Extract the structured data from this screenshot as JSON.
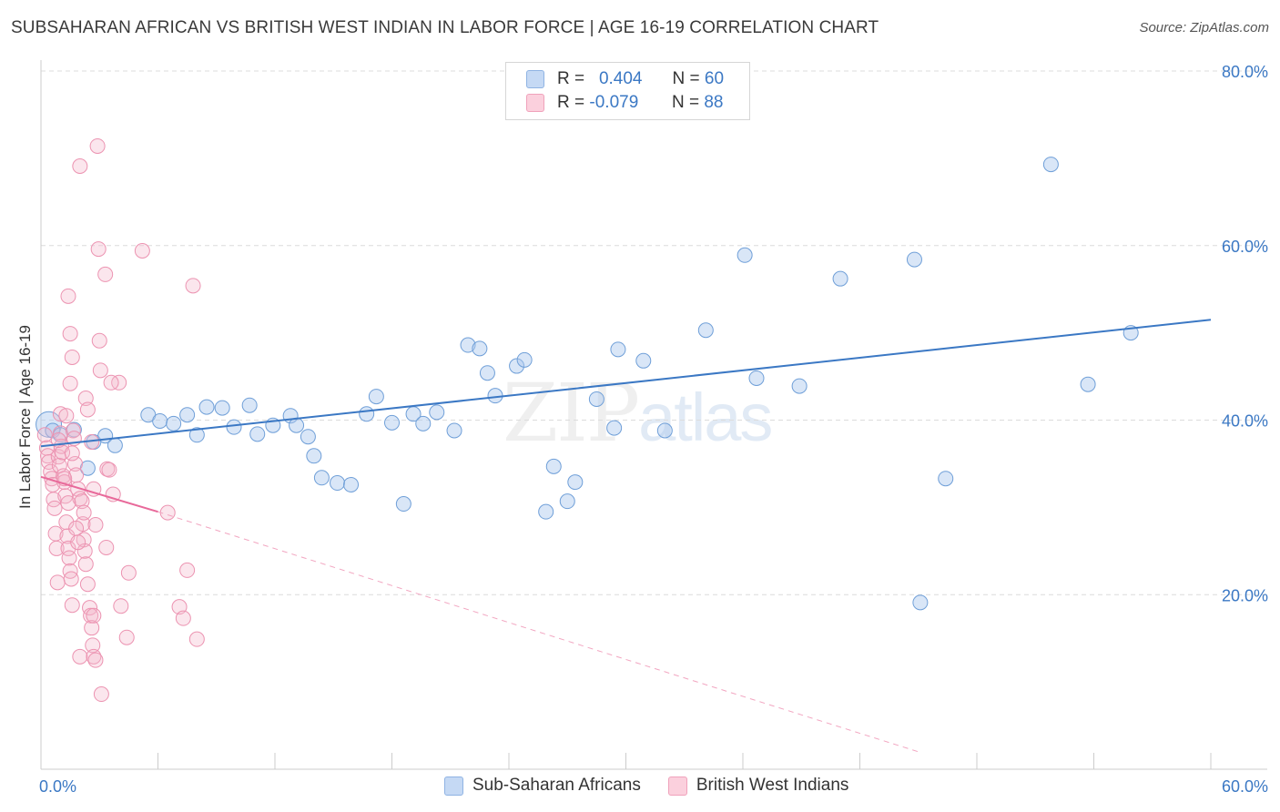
{
  "title": "SUBSAHARAN AFRICAN VS BRITISH WEST INDIAN IN LABOR FORCE | AGE 16-19 CORRELATION CHART",
  "source": "Source: ZipAtlas.com",
  "watermark": {
    "zip": "ZIP",
    "atlas": "atlas"
  },
  "colors": {
    "blue": "#3b78c4",
    "blue_fill": "#aac8ee",
    "pink": "#e8699a",
    "pink_fill": "#f4b8cb",
    "grid": "#dddddd"
  },
  "legend": {
    "rows": [
      {
        "r_label": "R =",
        "r_value": "0.404",
        "n_label": "N =",
        "n_value": "60"
      },
      {
        "r_label": "R =",
        "r_value": "-0.079",
        "n_label": "N =",
        "n_value": "88"
      }
    ]
  },
  "bottom_legend": [
    "Sub-Saharan Africans",
    "British West Indians"
  ],
  "chart_data": {
    "type": "scatter",
    "xlabel": "",
    "ylabel": "In Labor Force | Age 16-19",
    "xlim": [
      0,
      60
    ],
    "ylim": [
      0,
      80
    ],
    "x_tick_labels": [
      "0.0%",
      "60.0%"
    ],
    "y_tick_labels": [
      "20.0%",
      "40.0%",
      "60.0%",
      "80.0%"
    ],
    "y_ticks": [
      20,
      40,
      60,
      80
    ],
    "series": [
      {
        "name": "Sub-Saharan Africans",
        "color": "blue",
        "trend": {
          "x": [
            0,
            60
          ],
          "y": [
            37.0,
            51.5
          ],
          "style": "solid"
        },
        "points": [
          [
            0.4,
            39.5
          ],
          [
            0.6,
            38.8
          ],
          [
            1.0,
            38.3
          ],
          [
            1.7,
            38.9
          ],
          [
            2.7,
            37.5
          ],
          [
            2.4,
            34.5
          ],
          [
            3.3,
            38.2
          ],
          [
            3.8,
            37.1
          ],
          [
            5.5,
            40.6
          ],
          [
            6.1,
            39.9
          ],
          [
            6.8,
            39.6
          ],
          [
            7.5,
            40.6
          ],
          [
            8.0,
            38.3
          ],
          [
            8.5,
            41.5
          ],
          [
            9.3,
            41.4
          ],
          [
            9.9,
            39.2
          ],
          [
            10.7,
            41.7
          ],
          [
            11.1,
            38.4
          ],
          [
            11.9,
            39.4
          ],
          [
            12.8,
            40.5
          ],
          [
            13.1,
            39.4
          ],
          [
            13.7,
            38.1
          ],
          [
            14.0,
            35.9
          ],
          [
            14.4,
            33.4
          ],
          [
            15.2,
            32.8
          ],
          [
            15.9,
            32.6
          ],
          [
            16.7,
            40.7
          ],
          [
            17.2,
            42.7
          ],
          [
            18.0,
            39.7
          ],
          [
            18.6,
            30.4
          ],
          [
            19.1,
            40.7
          ],
          [
            19.6,
            39.6
          ],
          [
            20.3,
            40.9
          ],
          [
            21.2,
            38.8
          ],
          [
            21.9,
            48.6
          ],
          [
            22.5,
            48.2
          ],
          [
            22.9,
            45.4
          ],
          [
            23.3,
            42.8
          ],
          [
            24.4,
            46.2
          ],
          [
            24.8,
            46.9
          ],
          [
            25.9,
            29.5
          ],
          [
            26.3,
            34.7
          ],
          [
            27.0,
            30.7
          ],
          [
            27.4,
            32.9
          ],
          [
            28.5,
            42.4
          ],
          [
            29.4,
            39.1
          ],
          [
            29.6,
            48.1
          ],
          [
            30.9,
            46.8
          ],
          [
            32.0,
            38.8
          ],
          [
            34.1,
            50.3
          ],
          [
            36.1,
            58.9
          ],
          [
            36.7,
            44.8
          ],
          [
            38.9,
            43.9
          ],
          [
            41.0,
            56.2
          ],
          [
            44.8,
            58.4
          ],
          [
            45.1,
            19.1
          ],
          [
            46.4,
            33.3
          ],
          [
            51.8,
            69.3
          ],
          [
            53.7,
            44.1
          ],
          [
            55.9,
            50.0
          ]
        ]
      },
      {
        "name": "British West Indians",
        "color": "pink",
        "trend": {
          "x": [
            0,
            6.0
          ],
          "y": [
            33.5,
            29.5
          ],
          "style": "solid"
        },
        "trend_extension": {
          "x": [
            6.0,
            45.0
          ],
          "y": [
            29.5,
            2.0
          ],
          "style": "dashed"
        },
        "points": [
          [
            0.2,
            38.3
          ],
          [
            0.3,
            36.8
          ],
          [
            0.35,
            35.9
          ],
          [
            0.4,
            35.2
          ],
          [
            0.5,
            34.1
          ],
          [
            0.55,
            33.3
          ],
          [
            0.6,
            32.6
          ],
          [
            0.65,
            30.9
          ],
          [
            0.7,
            29.9
          ],
          [
            0.75,
            27.0
          ],
          [
            0.8,
            25.3
          ],
          [
            0.85,
            21.4
          ],
          [
            0.9,
            35.8
          ],
          [
            0.95,
            34.8
          ],
          [
            1.0,
            38.5
          ],
          [
            1.05,
            37.0
          ],
          [
            1.1,
            36.3
          ],
          [
            1.15,
            33.6
          ],
          [
            1.2,
            32.9
          ],
          [
            1.25,
            31.3
          ],
          [
            1.3,
            28.3
          ],
          [
            1.35,
            26.7
          ],
          [
            1.4,
            25.3
          ],
          [
            1.45,
            24.2
          ],
          [
            1.5,
            22.7
          ],
          [
            1.55,
            21.8
          ],
          [
            1.6,
            18.8
          ],
          [
            1.65,
            38.8
          ],
          [
            1.7,
            37.9
          ],
          [
            1.75,
            35.0
          ],
          [
            1.8,
            33.7
          ],
          [
            1.9,
            32.1
          ],
          [
            2.0,
            31.0
          ],
          [
            2.1,
            30.7
          ],
          [
            2.15,
            28.1
          ],
          [
            2.2,
            26.3
          ],
          [
            2.25,
            25.0
          ],
          [
            2.3,
            23.5
          ],
          [
            2.4,
            21.2
          ],
          [
            2.5,
            18.5
          ],
          [
            2.55,
            17.6
          ],
          [
            2.6,
            16.2
          ],
          [
            2.65,
            14.2
          ],
          [
            2.7,
            12.9
          ],
          [
            2.8,
            12.5
          ],
          [
            1.4,
            54.2
          ],
          [
            1.5,
            44.2
          ],
          [
            1.6,
            36.2
          ],
          [
            1.0,
            40.7
          ],
          [
            1.2,
            33.3
          ],
          [
            1.4,
            30.5
          ],
          [
            1.8,
            27.6
          ],
          [
            1.9,
            26.0
          ],
          [
            2.0,
            69.1
          ],
          [
            2.3,
            42.5
          ],
          [
            2.4,
            41.2
          ],
          [
            2.6,
            37.5
          ],
          [
            2.7,
            32.1
          ],
          [
            2.8,
            28.0
          ],
          [
            2.9,
            71.4
          ],
          [
            2.95,
            59.6
          ],
          [
            3.0,
            49.1
          ],
          [
            3.05,
            45.7
          ],
          [
            3.1,
            8.6
          ],
          [
            3.3,
            56.7
          ],
          [
            3.35,
            25.4
          ],
          [
            3.4,
            34.4
          ],
          [
            3.5,
            34.3
          ],
          [
            3.7,
            31.5
          ],
          [
            4.0,
            44.3
          ],
          [
            4.1,
            18.7
          ],
          [
            4.4,
            15.1
          ],
          [
            4.5,
            22.5
          ],
          [
            5.2,
            59.4
          ],
          [
            6.5,
            29.4
          ],
          [
            7.1,
            18.6
          ],
          [
            7.3,
            17.3
          ],
          [
            7.5,
            22.8
          ],
          [
            7.8,
            55.4
          ],
          [
            8.0,
            14.9
          ],
          [
            1.5,
            49.9
          ],
          [
            1.6,
            47.2
          ],
          [
            2.0,
            12.9
          ],
          [
            2.2,
            29.4
          ],
          [
            1.3,
            40.5
          ],
          [
            0.9,
            37.7
          ],
          [
            3.6,
            44.3
          ],
          [
            2.7,
            17.6
          ]
        ]
      }
    ]
  }
}
